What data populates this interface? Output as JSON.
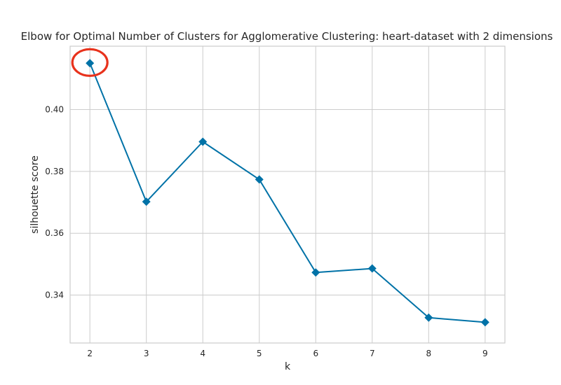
{
  "chart_data": {
    "type": "line",
    "title": "Elbow for Optimal Number of Clusters for Agglomerative Clustering: heart-dataset with 2 dimensions",
    "xlabel": "k",
    "ylabel": "silhouette score",
    "x": [
      2,
      3,
      4,
      5,
      6,
      7,
      8,
      9
    ],
    "series": [
      {
        "values": [
          0.415,
          0.3702,
          0.3896,
          0.3774,
          0.3473,
          0.3486,
          0.3327,
          0.3312
        ]
      }
    ],
    "xlim": [
      1.65,
      9.35
    ],
    "ylim": [
      0.3245,
      0.4205
    ],
    "xticks": [
      "2",
      "3",
      "4",
      "5",
      "6",
      "7",
      "8",
      "9"
    ],
    "yticks": [
      "0.34",
      "0.36",
      "0.38",
      "0.40"
    ],
    "grid": true,
    "marker": "diamond",
    "line_color": "#0072a7",
    "highlight": {
      "x": 2,
      "shape": "circle",
      "color": "#e8321c"
    }
  }
}
